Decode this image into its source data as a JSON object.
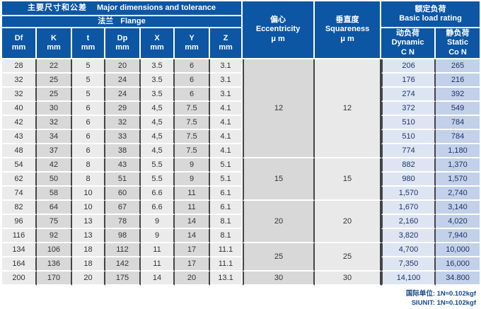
{
  "colors": {
    "header_blue": "#0c56a4",
    "column_light": "#ebebeb",
    "column_dark": "#d8d8d8",
    "dynamic_bg": "#dde5f3",
    "static_bg": "#c2d0e9",
    "border_dark": "#444444",
    "load_text": "#203567",
    "footer_text": "#164a8c"
  },
  "header": {
    "main_title_zh": "主要尺寸和公差",
    "main_title_en": "Major dimensions and tolerance",
    "flange_zh": "法兰",
    "flange_en": "Flange",
    "columns": [
      {
        "name": "Df",
        "unit": "mm"
      },
      {
        "name": "K",
        "unit": "mm"
      },
      {
        "name": "t",
        "unit": "mm"
      },
      {
        "name": "Dp",
        "unit": "mm"
      },
      {
        "name": "X",
        "unit": "mm"
      },
      {
        "name": "Y",
        "unit": "mm"
      },
      {
        "name": "Z",
        "unit": "mm"
      }
    ],
    "eccentricity": {
      "zh": "偏心",
      "en": "Eccentricity",
      "unit": "μ m"
    },
    "squareness": {
      "zh": "垂直度",
      "en": "Squareness",
      "unit": "μ m"
    },
    "load_rating": {
      "zh": "额定负荷",
      "en": "Basic load rating"
    },
    "dynamic": {
      "zh": "动负荷",
      "en": "Dynamic",
      "unit": "C N"
    },
    "static": {
      "zh": "静负荷",
      "en": "Static",
      "unit": "Co N"
    }
  },
  "rows": [
    [
      "28",
      "22",
      "5",
      "20",
      "3.5",
      "6",
      "3.1",
      "206",
      "265"
    ],
    [
      "32",
      "25",
      "5",
      "24",
      "3.5",
      "6",
      "3.1",
      "176",
      "216"
    ],
    [
      "32",
      "25",
      "5",
      "24",
      "3.5",
      "6",
      "3.1",
      "274",
      "392"
    ],
    [
      "40",
      "30",
      "6",
      "29",
      "4,5",
      "7.5",
      "4.1",
      "372",
      "549"
    ],
    [
      "42",
      "32",
      "6",
      "32",
      "4,5",
      "7.5",
      "4.1",
      "510",
      "784"
    ],
    [
      "43",
      "34",
      "6",
      "33",
      "4,5",
      "7.5",
      "4.1",
      "510",
      "784"
    ],
    [
      "48",
      "37",
      "6",
      "38",
      "4,5",
      "7.5",
      "4.1",
      "774",
      "1,180"
    ],
    [
      "54",
      "42",
      "8",
      "43",
      "5.5",
      "9",
      "5.1",
      "882",
      "1,370"
    ],
    [
      "62",
      "50",
      "8",
      "51",
      "5.5",
      "9",
      "5.1",
      "980",
      "1,570"
    ],
    [
      "74",
      "58",
      "10",
      "60",
      "6.6",
      "11",
      "6.1",
      "1,570",
      "2,740"
    ],
    [
      "82",
      "64",
      "10",
      "67",
      "6.6",
      "11",
      "6.1",
      "1,670",
      "3,140"
    ],
    [
      "96",
      "75",
      "13",
      "78",
      "9",
      "14",
      "8.1",
      "2,160",
      "4,020"
    ],
    [
      "116",
      "92",
      "13",
      "98",
      "9",
      "14",
      "8.1",
      "3,820",
      "7,940"
    ],
    [
      "134",
      "106",
      "18",
      "112",
      "11",
      "17",
      "11.1",
      "4,700",
      "10,000"
    ],
    [
      "164",
      "136",
      "18",
      "142",
      "11",
      "17",
      "11.1",
      "7,350",
      "16,000"
    ],
    [
      "200",
      "170",
      "20",
      "175",
      "14",
      "20",
      "13.1",
      "14,100",
      "34.800"
    ]
  ],
  "groups": [
    {
      "start": 0,
      "span": 7,
      "eccentricity": "12",
      "squareness": "12"
    },
    {
      "start": 7,
      "span": 3,
      "eccentricity": "15",
      "squareness": "15"
    },
    {
      "start": 10,
      "span": 3,
      "eccentricity": "20",
      "squareness": "20"
    },
    {
      "start": 13,
      "span": 2,
      "eccentricity": "25",
      "squareness": "25"
    },
    {
      "start": 15,
      "span": 1,
      "eccentricity": "30",
      "squareness": "30"
    }
  ],
  "footer": {
    "line1": "国际单位: 1N≈0.102kgf",
    "line2": "SIUNIT: 1N≈0.102kgf"
  }
}
